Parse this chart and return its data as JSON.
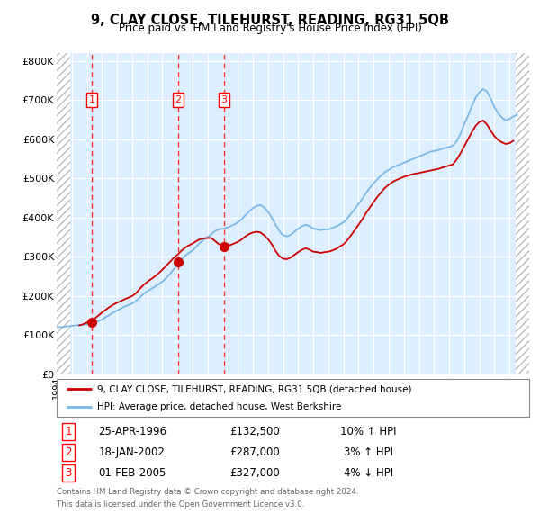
{
  "title": "9, CLAY CLOSE, TILEHURST, READING, RG31 5QB",
  "subtitle": "Price paid vs. HM Land Registry's House Price Index (HPI)",
  "xlim_start": 1994.0,
  "xlim_end": 2025.3,
  "ylim_min": 0,
  "ylim_max": 820000,
  "yticks": [
    0,
    100000,
    200000,
    300000,
    400000,
    500000,
    600000,
    700000,
    800000
  ],
  "ytick_labels": [
    "£0",
    "£100K",
    "£200K",
    "£300K",
    "£400K",
    "£500K",
    "£600K",
    "£700K",
    "£800K"
  ],
  "hpi_color": "#7ab8e8",
  "price_color": "#cc0000",
  "dot_color": "#cc0000",
  "sale_dates": [
    1996.32,
    2002.05,
    2005.08
  ],
  "sale_prices": [
    132500,
    287000,
    327000
  ],
  "sale_labels": [
    "1",
    "2",
    "3"
  ],
  "sale_info": [
    {
      "label": "1",
      "date": "25-APR-1996",
      "price": "£132,500",
      "hpi": "10% ↑ HPI"
    },
    {
      "label": "2",
      "date": "18-JAN-2002",
      "price": "£287,000",
      "hpi": "3% ↑ HPI"
    },
    {
      "label": "3",
      "date": "01-FEB-2005",
      "price": "£327,000",
      "hpi": "4% ↓ HPI"
    }
  ],
  "legend_price_label": "9, CLAY CLOSE, TILEHURST, READING, RG31 5QB (detached house)",
  "legend_hpi_label": "HPI: Average price, detached house, West Berkshire",
  "footer_line1": "Contains HM Land Registry data © Crown copyright and database right 2024.",
  "footer_line2": "This data is licensed under the Open Government Licence v3.0.",
  "hatch_color": "#bbbbbb",
  "bg_plot_color": "#ddeeff",
  "grid_color": "#ffffff",
  "hatch_left_end": 1994.9,
  "hatch_right_start": 2024.4,
  "hpi_data_x": [
    1994.0,
    1994.25,
    1994.5,
    1994.75,
    1995.0,
    1995.25,
    1995.5,
    1995.75,
    1996.0,
    1996.25,
    1996.5,
    1996.75,
    1997.0,
    1997.25,
    1997.5,
    1997.75,
    1998.0,
    1998.25,
    1998.5,
    1998.75,
    1999.0,
    1999.25,
    1999.5,
    1999.75,
    2000.0,
    2000.25,
    2000.5,
    2000.75,
    2001.0,
    2001.25,
    2001.5,
    2001.75,
    2002.0,
    2002.25,
    2002.5,
    2002.75,
    2003.0,
    2003.25,
    2003.5,
    2003.75,
    2004.0,
    2004.25,
    2004.5,
    2004.75,
    2005.0,
    2005.25,
    2005.5,
    2005.75,
    2006.0,
    2006.25,
    2006.5,
    2006.75,
    2007.0,
    2007.25,
    2007.5,
    2007.75,
    2008.0,
    2008.25,
    2008.5,
    2008.75,
    2009.0,
    2009.25,
    2009.5,
    2009.75,
    2010.0,
    2010.25,
    2010.5,
    2010.75,
    2011.0,
    2011.25,
    2011.5,
    2011.75,
    2012.0,
    2012.25,
    2012.5,
    2012.75,
    2013.0,
    2013.25,
    2013.5,
    2013.75,
    2014.0,
    2014.25,
    2014.5,
    2014.75,
    2015.0,
    2015.25,
    2015.5,
    2015.75,
    2016.0,
    2016.25,
    2016.5,
    2016.75,
    2017.0,
    2017.25,
    2017.5,
    2017.75,
    2018.0,
    2018.25,
    2018.5,
    2018.75,
    2019.0,
    2019.25,
    2019.5,
    2019.75,
    2020.0,
    2020.25,
    2020.5,
    2020.75,
    2021.0,
    2021.25,
    2021.5,
    2021.75,
    2022.0,
    2022.25,
    2022.5,
    2022.75,
    2023.0,
    2023.25,
    2023.5,
    2023.75,
    2024.0,
    2024.25,
    2024.5
  ],
  "hpi_data_y": [
    120000,
    121000,
    122000,
    123000,
    124000,
    125000,
    126000,
    127000,
    128000,
    130000,
    133000,
    136000,
    140000,
    146000,
    152000,
    158000,
    163000,
    168000,
    173000,
    177000,
    181000,
    187000,
    196000,
    205000,
    212000,
    218000,
    224000,
    230000,
    237000,
    246000,
    256000,
    268000,
    280000,
    292000,
    302000,
    310000,
    316000,
    326000,
    336000,
    344000,
    350000,
    358000,
    366000,
    370000,
    372000,
    374000,
    378000,
    382000,
    388000,
    396000,
    406000,
    416000,
    424000,
    430000,
    432000,
    426000,
    415000,
    400000,
    382000,
    366000,
    355000,
    352000,
    356000,
    364000,
    372000,
    378000,
    382000,
    378000,
    372000,
    370000,
    368000,
    370000,
    370000,
    373000,
    377000,
    382000,
    388000,
    398000,
    410000,
    422000,
    435000,
    448000,
    463000,
    476000,
    488000,
    498000,
    508000,
    516000,
    522000,
    528000,
    532000,
    536000,
    540000,
    544000,
    548000,
    552000,
    556000,
    560000,
    564000,
    568000,
    570000,
    572000,
    575000,
    578000,
    580000,
    584000,
    595000,
    614000,
    638000,
    660000,
    684000,
    706000,
    720000,
    728000,
    722000,
    704000,
    682000,
    666000,
    655000,
    648000,
    652000,
    658000,
    662000
  ],
  "price_data_x": [
    1995.5,
    1995.75,
    1996.0,
    1996.25,
    1996.5,
    1996.75,
    1997.0,
    1997.25,
    1997.5,
    1997.75,
    1998.0,
    1998.25,
    1998.5,
    1998.75,
    1999.0,
    1999.25,
    1999.5,
    1999.75,
    2000.0,
    2000.25,
    2000.5,
    2000.75,
    2001.0,
    2001.25,
    2001.5,
    2001.75,
    2002.0,
    2002.25,
    2002.5,
    2002.75,
    2003.0,
    2003.25,
    2003.5,
    2003.75,
    2004.0,
    2004.25,
    2004.5,
    2004.75,
    2005.0,
    2005.25,
    2005.5,
    2005.75,
    2006.0,
    2006.25,
    2006.5,
    2006.75,
    2007.0,
    2007.25,
    2007.5,
    2007.75,
    2008.0,
    2008.25,
    2008.5,
    2008.75,
    2009.0,
    2009.25,
    2009.5,
    2009.75,
    2010.0,
    2010.25,
    2010.5,
    2010.75,
    2011.0,
    2011.25,
    2011.5,
    2011.75,
    2012.0,
    2012.25,
    2012.5,
    2012.75,
    2013.0,
    2013.25,
    2013.5,
    2013.75,
    2014.0,
    2014.25,
    2014.5,
    2014.75,
    2015.0,
    2015.25,
    2015.5,
    2015.75,
    2016.0,
    2016.25,
    2016.5,
    2016.75,
    2017.0,
    2017.25,
    2017.5,
    2017.75,
    2018.0,
    2018.25,
    2018.5,
    2018.75,
    2019.0,
    2019.25,
    2019.5,
    2019.75,
    2020.0,
    2020.25,
    2020.5,
    2020.75,
    2021.0,
    2021.25,
    2021.5,
    2021.75,
    2022.0,
    2022.25,
    2022.5,
    2022.75,
    2023.0,
    2023.25,
    2023.5,
    2023.75,
    2024.0,
    2024.25
  ],
  "price_data_y": [
    125000,
    128000,
    132500,
    136000,
    142000,
    150000,
    158000,
    165000,
    172000,
    178000,
    183000,
    187000,
    192000,
    196000,
    200000,
    207000,
    218000,
    228000,
    236000,
    243000,
    250000,
    258000,
    267000,
    277000,
    287000,
    297000,
    305000,
    315000,
    323000,
    329000,
    334000,
    340000,
    345000,
    347000,
    348000,
    348000,
    340000,
    332000,
    328000,
    327000,
    330000,
    334000,
    338000,
    344000,
    352000,
    358000,
    362000,
    364000,
    362000,
    355000,
    345000,
    332000,
    315000,
    302000,
    295000,
    294000,
    298000,
    305000,
    312000,
    318000,
    322000,
    318000,
    313000,
    312000,
    310000,
    312000,
    313000,
    316000,
    320000,
    326000,
    332000,
    342000,
    355000,
    368000,
    382000,
    396000,
    412000,
    426000,
    440000,
    453000,
    465000,
    476000,
    484000,
    491000,
    496000,
    500000,
    504000,
    507000,
    510000,
    512000,
    514000,
    516000,
    518000,
    520000,
    522000,
    524000,
    527000,
    530000,
    533000,
    536000,
    548000,
    564000,
    582000,
    600000,
    618000,
    634000,
    644000,
    648000,
    638000,
    622000,
    608000,
    598000,
    592000,
    588000,
    590000,
    596000
  ]
}
